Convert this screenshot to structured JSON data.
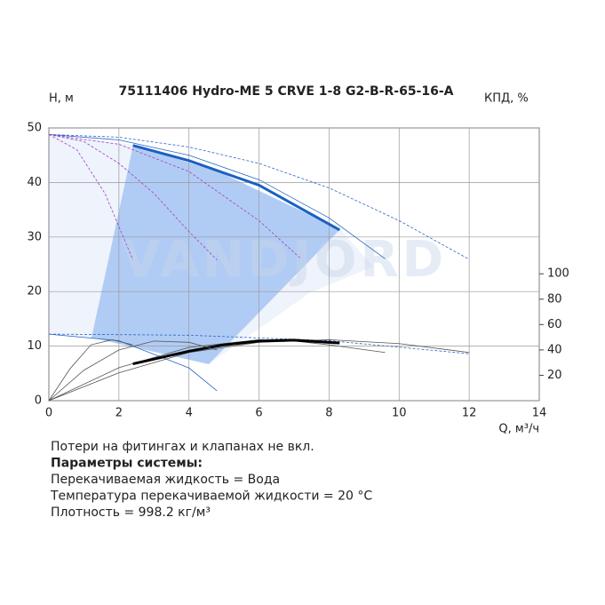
{
  "chart_data": {
    "type": "line",
    "title": "75111406 Hydro-ME 5 CRVE 1-8 G2-B-R-65-16-A",
    "ylabel": "H, м",
    "y2label": "КПД, %",
    "xlabel": "Q, м³/ч",
    "watermark": "VANDJORD",
    "xlim": [
      0,
      14
    ],
    "xticks": [
      0,
      2,
      4,
      6,
      8,
      10,
      12,
      14
    ],
    "ylim": [
      0,
      50
    ],
    "yticks": [
      0,
      10,
      20,
      30,
      40,
      50
    ],
    "y2lim": [
      0,
      215
    ],
    "y2ticks": [
      20,
      40,
      60,
      80,
      100
    ],
    "grid": true,
    "series": [
      {
        "color": "#2a66c4",
        "width": 0.8,
        "dash": true,
        "x": [
          0,
          2,
          4,
          6,
          8,
          10,
          12
        ],
        "values": [
          48.8,
          48.3,
          46.5,
          43.5,
          39,
          33,
          25.9
        ]
      },
      {
        "color": "#2a66c4",
        "width": 0.8,
        "x": [
          0,
          2,
          4,
          6,
          8,
          9.6
        ],
        "values": [
          48.8,
          47.8,
          45,
          40.5,
          33.5,
          26
        ]
      },
      {
        "color": "#1a5fc4",
        "width": 3,
        "x": [
          2.4,
          4,
          6,
          8.3
        ],
        "values": [
          46.8,
          44,
          39.5,
          31.3
        ]
      },
      {
        "color": "#a040c0",
        "width": 0.8,
        "dash": true,
        "x": [
          0,
          2,
          4,
          6,
          7.2
        ],
        "values": [
          48.8,
          47,
          42,
          33,
          26
        ]
      },
      {
        "color": "#a040c0",
        "width": 0.8,
        "dash": true,
        "x": [
          0,
          1,
          2,
          3,
          4,
          4.8
        ],
        "values": [
          48.8,
          47.5,
          43.5,
          38,
          31,
          25.8
        ]
      },
      {
        "color": "#a040c0",
        "width": 0.8,
        "dash": true,
        "x": [
          0,
          0.8,
          1.6,
          2.4
        ],
        "values": [
          48.8,
          46,
          38,
          25.8
        ]
      },
      {
        "color": "#2a66c4",
        "width": 0.8,
        "x": [
          0,
          2,
          4,
          4.8
        ],
        "values": [
          12.2,
          11,
          6,
          1.8
        ]
      },
      {
        "color": "#2a66c4",
        "width": 0.8,
        "dash": true,
        "x": [
          0,
          4,
          8,
          12
        ],
        "values": [
          12.2,
          12,
          11,
          8.6
        ]
      },
      {
        "color": "#555555",
        "width": 0.8,
        "axis": "y2",
        "x": [
          0,
          2,
          4,
          6,
          8,
          10,
          12
        ],
        "values": [
          0,
          22,
          38,
          46,
          48,
          45,
          38
        ]
      },
      {
        "color": "#555555",
        "width": 0.8,
        "axis": "y2",
        "x": [
          0,
          2,
          4,
          6,
          7,
          8,
          9.6
        ],
        "values": [
          0,
          26,
          42,
          48,
          47,
          44,
          38
        ]
      },
      {
        "color": "#000000",
        "width": 3,
        "axis": "y2",
        "x": [
          2.4,
          4,
          5,
          6,
          7,
          8.3
        ],
        "values": [
          29,
          39,
          44,
          47,
          47.7,
          45.4
        ]
      },
      {
        "color": "#555555",
        "width": 0.8,
        "axis": "y2",
        "x": [
          0,
          1,
          2,
          3,
          4,
          4.8
        ],
        "values": [
          0,
          24,
          40,
          47,
          46,
          40
        ]
      },
      {
        "color": "#555555",
        "width": 0.8,
        "axis": "y2",
        "x": [
          0,
          0.6,
          1.2,
          1.8,
          2.4
        ],
        "values": [
          0,
          25,
          44,
          48,
          44
        ]
      }
    ]
  },
  "notes": [
    {
      "text": "Потери на фитингах и клапанах не вкл.",
      "bold": false
    },
    {
      "text": "Параметры системы:",
      "bold": true
    },
    {
      "text": "Перекачиваемая жидкость = Вода",
      "bold": false
    },
    {
      "text": "Температура перекачиваемой жидкости = 20 °C",
      "bold": false
    },
    {
      "text": "Плотность = 998.2 кг/м³",
      "bold": false
    }
  ]
}
